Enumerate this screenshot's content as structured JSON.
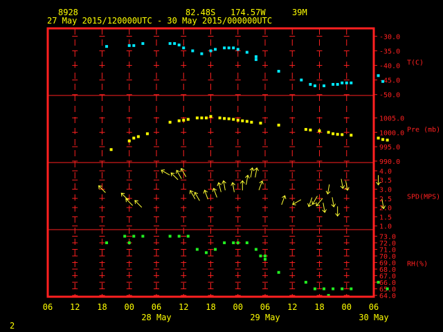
{
  "header": {
    "station_id": "8928",
    "lat": "82.48S",
    "lon": "174.57W",
    "elev": "39M",
    "range": "27 May 2015/120000UTC - 30 May 2015/000000UTC"
  },
  "page_number": "2",
  "colors": {
    "frame": "#ff2020",
    "grid": "#ff2020",
    "temp": "#00e8ff",
    "pressure": "#ffff00",
    "wind": "#ffff33",
    "rh": "#22ee22",
    "header": "#ffff00"
  },
  "chart_data": {
    "type": "scatter",
    "x_unit": "hours since 27 May 2015 06 UTC",
    "x_ticks": [
      "06",
      "12",
      "18",
      "00",
      "06",
      "12",
      "18",
      "00",
      "06",
      "12",
      "18",
      "00",
      "06"
    ],
    "date_labels": [
      "28 May",
      "29 May",
      "30 May"
    ],
    "panels": [
      {
        "name": "temperature",
        "label": "T(C)",
        "yticks": [
          -30.0,
          -35.0,
          -40.0,
          -45.0,
          -50.0
        ],
        "ytick_labels": [
          "-30.0",
          "-35.0",
          "-40.0",
          "-45.0",
          "-50.0"
        ],
        "ylim": [
          -50.3,
          -27.3
        ],
        "points": [
          [
            13,
            -33.5
          ],
          [
            18,
            -33.2
          ],
          [
            19,
            -33.2
          ],
          [
            21,
            -32.5
          ],
          [
            27,
            -32.5
          ],
          [
            28,
            -32.5
          ],
          [
            29,
            -33
          ],
          [
            30,
            -34
          ],
          [
            32,
            -35
          ],
          [
            34,
            -36
          ],
          [
            36,
            -35
          ],
          [
            37,
            -34.5
          ],
          [
            39,
            -34
          ],
          [
            40,
            -34
          ],
          [
            41,
            -34
          ],
          [
            42,
            -34.5
          ],
          [
            44,
            -35.5
          ],
          [
            46,
            -37
          ],
          [
            46,
            -38
          ],
          [
            51,
            -42
          ],
          [
            56,
            -45
          ],
          [
            58,
            -46.5
          ],
          [
            59,
            -47
          ],
          [
            61,
            -47
          ],
          [
            63,
            -46.5
          ],
          [
            64,
            -46.5
          ],
          [
            65,
            -46
          ],
          [
            66,
            -46
          ],
          [
            67,
            -46
          ],
          [
            73,
            -43.5
          ],
          [
            74,
            -45.5
          ]
        ]
      },
      {
        "name": "pressure",
        "label": "Pre (mb)",
        "yticks": [
          1005.0,
          1000.0,
          995.0,
          990.0
        ],
        "ytick_labels": [
          "1005.0",
          "1000.0",
          "995.0",
          "990.0"
        ],
        "ylim": [
          989.5,
          1012.8
        ],
        "points": [
          [
            14,
            994.0
          ],
          [
            18,
            997.0
          ],
          [
            19,
            998.0
          ],
          [
            20,
            998.5
          ],
          [
            22,
            999.5
          ],
          [
            27,
            1003.5
          ],
          [
            29,
            1004.0
          ],
          [
            30,
            1004.2
          ],
          [
            31,
            1004.5
          ],
          [
            33,
            1005.0
          ],
          [
            34,
            1005.0
          ],
          [
            35,
            1005.0
          ],
          [
            36,
            1005.5
          ],
          [
            38,
            1005.0
          ],
          [
            39,
            1004.8
          ],
          [
            40,
            1004.7
          ],
          [
            41,
            1004.5
          ],
          [
            42,
            1004.2
          ],
          [
            43,
            1004.0
          ],
          [
            44,
            1003.8
          ],
          [
            45,
            1003.5
          ],
          [
            47,
            1003.2
          ],
          [
            51,
            1002.5
          ],
          [
            57,
            1001.0
          ],
          [
            58,
            1000.8
          ],
          [
            60,
            1000.5
          ],
          [
            62,
            1000.0
          ],
          [
            63,
            999.5
          ],
          [
            64,
            999.3
          ],
          [
            65,
            999.2
          ],
          [
            67,
            999.0
          ],
          [
            73,
            998.0
          ],
          [
            74,
            997.5
          ],
          [
            75,
            997.3
          ]
        ]
      },
      {
        "name": "wind",
        "label": "SPD(MPS)",
        "yticks": [
          4.0,
          3.5,
          3.0,
          2.5,
          2.0,
          1.5,
          1.0
        ],
        "ytick_labels": [
          "4.0",
          "3.5",
          "3.0",
          "2.5",
          "2.0",
          "1.5",
          "1.0"
        ],
        "ylim": [
          0.8,
          4.45
        ],
        "points": [
          [
            12,
            3.0,
            315
          ],
          [
            17,
            2.6,
            315
          ],
          [
            18,
            2.3,
            315
          ],
          [
            20,
            2.2,
            315
          ],
          [
            26,
            3.9,
            300
          ],
          [
            28,
            3.7,
            315
          ],
          [
            29,
            3.8,
            330
          ],
          [
            30,
            3.9,
            330
          ],
          [
            32,
            2.7,
            330
          ],
          [
            33,
            2.6,
            330
          ],
          [
            35,
            2.7,
            340
          ],
          [
            37,
            2.8,
            340
          ],
          [
            38,
            3.1,
            345
          ],
          [
            39,
            3.2,
            350
          ],
          [
            41,
            3.1,
            350
          ],
          [
            43,
            3.2,
            0
          ],
          [
            44,
            3.5,
            10
          ],
          [
            45,
            3.9,
            10
          ],
          [
            46,
            3.9,
            10
          ],
          [
            47,
            3.2,
            20
          ],
          [
            52,
            2.4,
            20
          ],
          [
            55,
            2.3,
            240
          ],
          [
            58,
            2.3,
            200
          ],
          [
            59,
            2.4,
            210
          ],
          [
            60,
            2.3,
            220
          ],
          [
            61,
            2.0,
            170
          ],
          [
            62,
            3.0,
            190
          ],
          [
            63,
            2.3,
            170
          ],
          [
            64,
            1.8,
            180
          ],
          [
            65,
            3.3,
            170
          ],
          [
            66,
            3.2,
            170
          ],
          [
            73,
            3.5,
            180
          ],
          [
            74,
            2.2,
            170
          ]
        ]
      },
      {
        "name": "rh",
        "label": "RH(%)",
        "yticks": [
          73.0,
          72.0,
          71.0,
          70.0,
          69.0,
          68.0,
          67.0,
          66.0,
          65.0,
          64.0
        ],
        "ytick_labels": [
          "73.0",
          "72.0",
          "71.0",
          "70.0",
          "69.0",
          "68.0",
          "67.0",
          "66.0",
          "65.0",
          "64.0"
        ],
        "ylim": [
          63.8,
          74.0
        ],
        "points": [
          [
            13,
            72.0
          ],
          [
            17,
            73.0
          ],
          [
            18,
            72.0
          ],
          [
            19,
            73.0
          ],
          [
            21,
            73.0
          ],
          [
            27,
            73.0
          ],
          [
            29,
            73.0
          ],
          [
            31,
            73.0
          ],
          [
            33,
            71.0
          ],
          [
            35,
            70.5
          ],
          [
            37,
            71.0
          ],
          [
            39,
            72.0
          ],
          [
            41,
            72.0
          ],
          [
            42,
            72.0
          ],
          [
            44,
            72.0
          ],
          [
            46,
            71.0
          ],
          [
            47,
            70.0
          ],
          [
            48,
            70.0
          ],
          [
            48,
            69.5
          ],
          [
            51,
            67.5
          ],
          [
            57,
            66.0
          ],
          [
            59,
            65.0
          ],
          [
            61,
            65.0
          ],
          [
            62,
            64.0
          ],
          [
            63,
            65.0
          ],
          [
            65,
            65.0
          ],
          [
            67,
            65.0
          ],
          [
            73,
            66.0
          ],
          [
            75,
            65.0
          ]
        ]
      }
    ]
  }
}
